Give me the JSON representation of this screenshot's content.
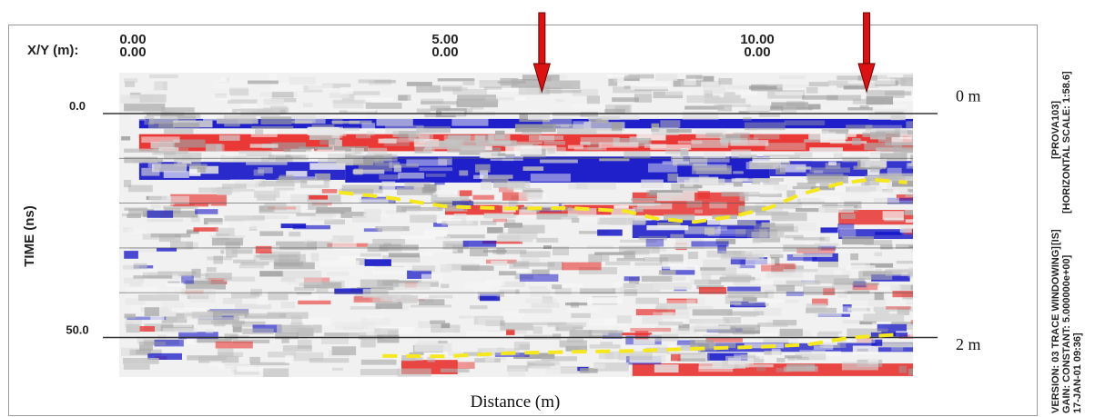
{
  "chart_data": {
    "type": "heatmap",
    "title": "",
    "xy_label": "X/Y (m):",
    "ylabel": "TIME (ns)",
    "xlabel": "Distance (m)",
    "xlim": [
      0,
      12.6
    ],
    "ylim": [
      -10,
      56
    ],
    "x_ticks": [
      {
        "x": 0,
        "line1": "0.00",
        "line2": "0.00"
      },
      {
        "x": 5,
        "line1": "5.00",
        "line2": "0.00"
      },
      {
        "x": 10,
        "line1": "10.00",
        "line2": "0.00"
      }
    ],
    "y_ticks": [
      {
        "value": 0,
        "label": "0.0"
      },
      {
        "value": 50,
        "label": "50.0"
      }
    ],
    "depth_labels": [
      {
        "time": -4,
        "label": "0 m"
      },
      {
        "time": 51.5,
        "label": "2 m"
      }
    ],
    "arrows_x": [
      6.55,
      11.75
    ],
    "colors": {
      "positive": "#e8322f",
      "negative": "#1414c8",
      "interpretation_line": "#f5e81e",
      "arrow": "#dd1111"
    },
    "series": [
      {
        "points": [
          [
            3.3,
            17.6
          ],
          [
            4.0,
            18.6
          ],
          [
            5.0,
            20.7
          ],
          [
            6.0,
            21.2
          ],
          [
            7.0,
            21.1
          ],
          [
            7.9,
            21.8
          ],
          [
            8.4,
            23.5
          ],
          [
            9.0,
            24.2
          ],
          [
            9.6,
            23.0
          ],
          [
            10.2,
            21.0
          ],
          [
            10.7,
            18.0
          ],
          [
            11.3,
            15.7
          ],
          [
            11.8,
            14.7
          ],
          [
            12.4,
            15.4
          ]
        ]
      },
      {
        "points": [
          [
            4.0,
            54.1
          ],
          [
            5.0,
            54.2
          ],
          [
            6.0,
            53.5
          ],
          [
            7.0,
            53.2
          ],
          [
            8.0,
            53.0
          ],
          [
            9.0,
            52.5
          ],
          [
            10.0,
            52.1
          ],
          [
            10.8,
            51.6
          ],
          [
            11.5,
            50.0
          ],
          [
            12.3,
            49.3
          ]
        ]
      }
    ]
  },
  "side_text": {
    "line1": "VERSION: 03 TRACE WINDOWING]",
    "line2": "GAIN: CONSTANT: 5.000000e+00]",
    "line3": "17-JAN-01  09:36]",
    "upper1": "[PROVA103]",
    "upper2": "[HORIZONTAL SCALE: 1:58.6]",
    "upper3": "[IS]"
  }
}
